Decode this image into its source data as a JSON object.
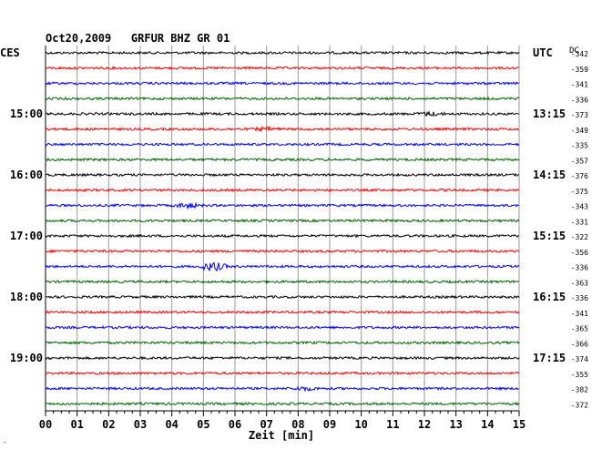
{
  "chart_data": {
    "type": "line",
    "title": "Oct20,2009   GRFUR BHZ GR 01",
    "left_axis_label": "CES",
    "right_axis_label": "UTC",
    "dc_label": "DC",
    "xlabel": "Zeit [min]",
    "x_range_min": [
      0,
      15
    ],
    "x_ticks": [
      "00",
      "01",
      "02",
      "03",
      "04",
      "05",
      "06",
      "07",
      "08",
      "09",
      "10",
      "11",
      "12",
      "13",
      "14",
      "15"
    ],
    "trace_minutes": 15,
    "trace_colors": [
      "#000000",
      "#ff0000",
      "#0000ff",
      "#006400"
    ],
    "left_time_labels": [
      {
        "trace": 4,
        "label": "15:00"
      },
      {
        "trace": 8,
        "label": "16:00"
      },
      {
        "trace": 12,
        "label": "17:00"
      },
      {
        "trace": 16,
        "label": "18:00"
      },
      {
        "trace": 20,
        "label": "19:00"
      }
    ],
    "right_time_labels": [
      {
        "trace": 0,
        "label": "UTC"
      },
      {
        "trace": 4,
        "label": "13:15"
      },
      {
        "trace": 8,
        "label": "14:15"
      },
      {
        "trace": 12,
        "label": "15:15"
      },
      {
        "trace": 16,
        "label": "16:15"
      },
      {
        "trace": 20,
        "label": "17:15"
      }
    ],
    "dc_offsets": [
      -342,
      -359,
      -341,
      -336,
      -373,
      -349,
      -335,
      -357,
      -376,
      -375,
      -343,
      -331,
      -322,
      -356,
      -336,
      -363,
      -336,
      -341,
      -365,
      -366,
      -374,
      -355,
      -382,
      -372
    ],
    "events": [
      {
        "trace": 4,
        "minute": 12.2,
        "amplitude": 1.6
      },
      {
        "trace": 5,
        "minute": 7.0,
        "amplitude": 1.4
      },
      {
        "trace": 10,
        "minute": 4.5,
        "amplitude": 2.2
      },
      {
        "trace": 14,
        "minute": 5.3,
        "amplitude": 4.5
      },
      {
        "trace": 22,
        "minute": 8.2,
        "amplitude": 1.6
      }
    ]
  }
}
